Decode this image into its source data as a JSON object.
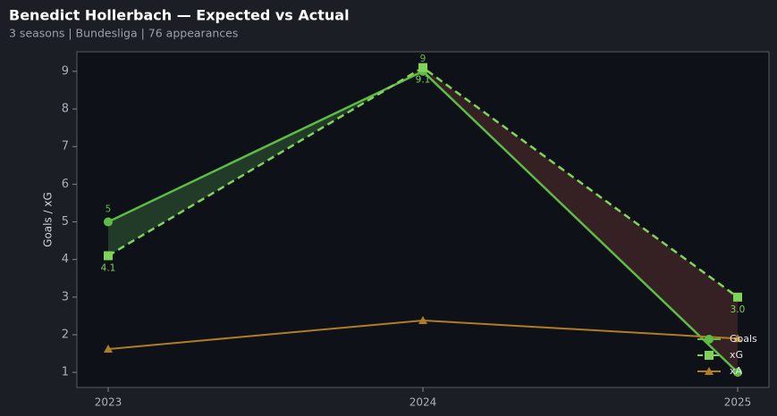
{
  "chart_data": {
    "type": "line",
    "title": "Benedict Hollerbach — Expected vs Actual",
    "subtitle": "3 seasons | Bundesliga | 76 appearances",
    "y_label": "Goals / xG",
    "categories": [
      "2023",
      "2024",
      "2025"
    ],
    "series": [
      {
        "name": "Goals",
        "color": "#5dbb46",
        "marker": "circle",
        "dash": false,
        "values": [
          5,
          9,
          1
        ],
        "value_labels": [
          "5",
          "9",
          null
        ],
        "label_side": "above"
      },
      {
        "name": "xG",
        "color": "#7fd35a",
        "marker": "square",
        "dash": true,
        "values": [
          4.1,
          9.1,
          3.0
        ],
        "value_labels": [
          "4.1",
          "9.1",
          "3.0"
        ],
        "label_side": "below"
      },
      {
        "name": "xA",
        "color": "#b07d24",
        "marker": "triangle",
        "dash": false,
        "values": [
          1.62,
          2.38,
          1.9
        ]
      }
    ],
    "fill_between": {
      "above_color": "#23402a",
      "below_color": "#3a2226"
    },
    "ylim": [
      0.6,
      9.52
    ],
    "yticks": [
      1,
      2,
      3,
      4,
      5,
      6,
      7,
      8,
      9
    ],
    "legend": "lower right"
  }
}
